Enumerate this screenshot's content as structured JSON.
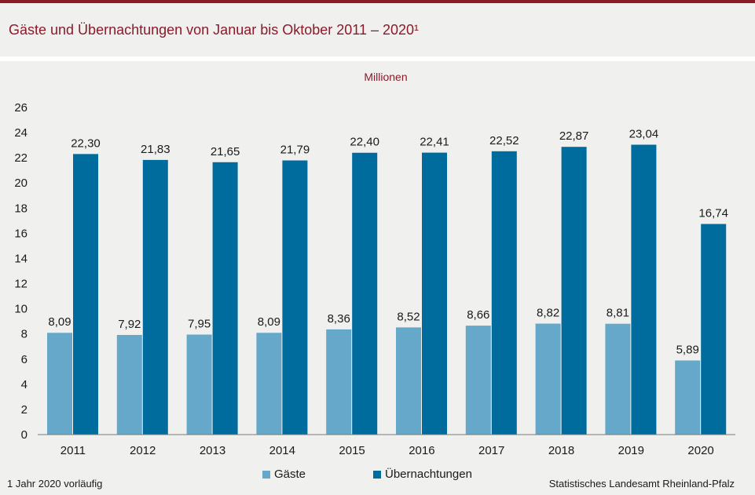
{
  "title": "Gäste und Übernachtungen von Januar bis Oktober 2011 – 2020¹",
  "unit": "Millionen",
  "footnote": "1 Jahr 2020 vorläufig",
  "source": "Statistisches Landesamt Rheinland-Pfalz",
  "colors": {
    "brand": "#8b1a2b",
    "gaeste": "#65a8c9",
    "uebernachtungen": "#006c9e"
  },
  "chart_data": {
    "type": "bar",
    "categories": [
      "2011",
      "2012",
      "2013",
      "2014",
      "2015",
      "2016",
      "2017",
      "2018",
      "2019",
      "2020"
    ],
    "series": [
      {
        "name": "Gäste",
        "values": [
          8.09,
          7.92,
          7.95,
          8.09,
          8.36,
          8.52,
          8.66,
          8.82,
          8.81,
          5.89
        ],
        "labels": [
          "8,09",
          "7,92",
          "7,95",
          "8,09",
          "8,36",
          "8,52",
          "8,66",
          "8,82",
          "8,81",
          "5,89"
        ]
      },
      {
        "name": "Übernachtungen",
        "values": [
          22.3,
          21.83,
          21.65,
          21.79,
          22.4,
          22.41,
          22.52,
          22.87,
          23.04,
          16.74
        ],
        "labels": [
          "22,30",
          "21,83",
          "21,65",
          "21,79",
          "22,40",
          "22,41",
          "22,52",
          "22,87",
          "23,04",
          "16,74"
        ]
      }
    ],
    "ylim": [
      0,
      26
    ],
    "yticks": [
      0,
      2,
      4,
      6,
      8,
      10,
      12,
      14,
      16,
      18,
      20,
      22,
      24,
      26
    ],
    "grid": false,
    "legend": "bottom"
  }
}
